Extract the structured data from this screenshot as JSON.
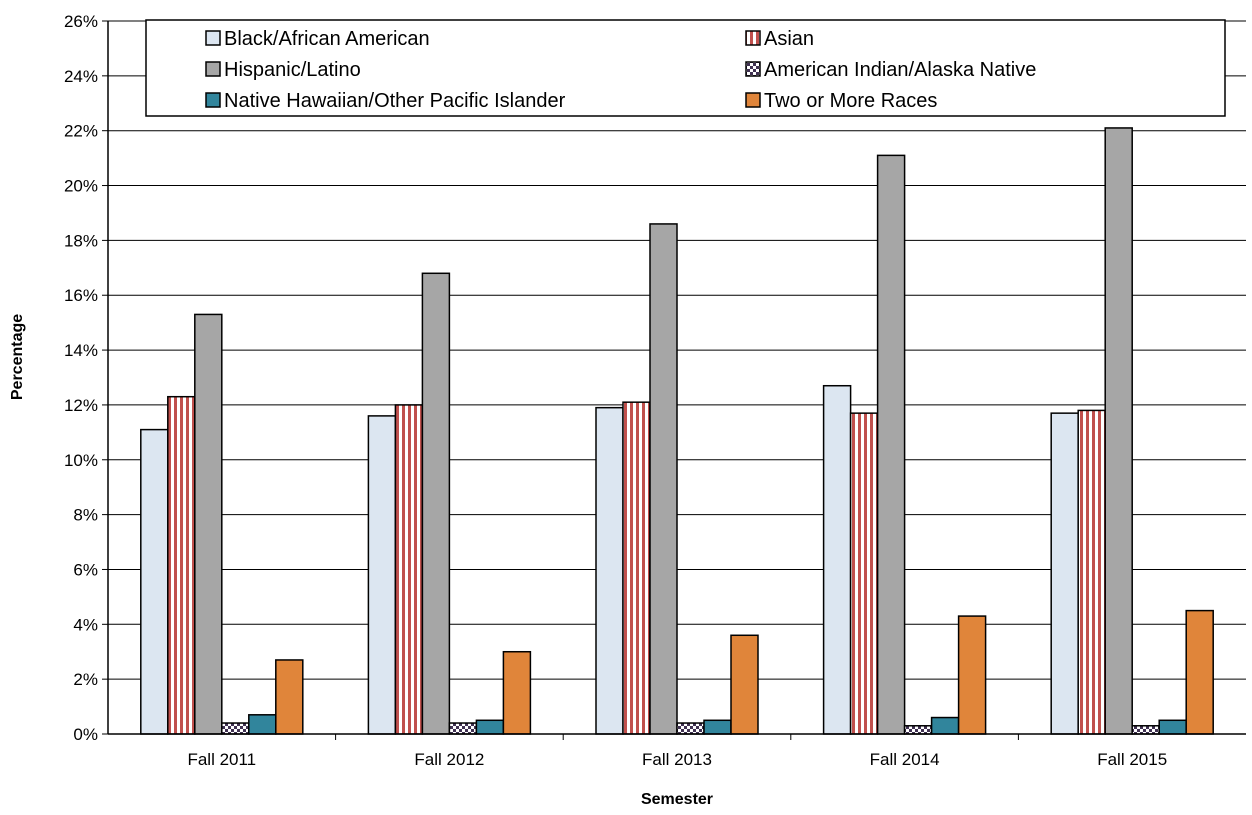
{
  "chart_data": {
    "type": "bar",
    "title": "",
    "xlabel": "Semester",
    "ylabel": "Percentage",
    "ylim": [
      0,
      26
    ],
    "ytick_step": 2,
    "ytick_suffix": "%",
    "grid": "horizontal",
    "legend_position": "top",
    "categories": [
      "Fall 2011",
      "Fall 2012",
      "Fall 2013",
      "Fall 2014",
      "Fall 2015"
    ],
    "series": [
      {
        "name": "Black/African American",
        "color": "#dce6f1",
        "pattern": "solid",
        "values": [
          11.1,
          11.6,
          11.9,
          12.7,
          11.7
        ]
      },
      {
        "name": "Asian",
        "color": "#c0504d",
        "pattern": "vertical-stripes",
        "values": [
          12.3,
          12.0,
          12.1,
          11.7,
          11.8
        ]
      },
      {
        "name": "Hispanic/Latino",
        "color": "#a6a6a6",
        "pattern": "solid",
        "values": [
          15.3,
          16.8,
          18.6,
          21.1,
          22.1
        ]
      },
      {
        "name": "American Indian/Alaska Native",
        "color": "#403152",
        "pattern": "checker",
        "values": [
          0.4,
          0.4,
          0.4,
          0.3,
          0.3
        ]
      },
      {
        "name": "Native Hawaiian/Other Pacific Islander",
        "color": "#31859c",
        "pattern": "solid",
        "values": [
          0.7,
          0.5,
          0.5,
          0.6,
          0.5
        ]
      },
      {
        "name": "Two or More Races",
        "color": "#e0853a",
        "pattern": "solid",
        "values": [
          2.7,
          3.0,
          3.6,
          4.3,
          4.5
        ]
      }
    ]
  }
}
